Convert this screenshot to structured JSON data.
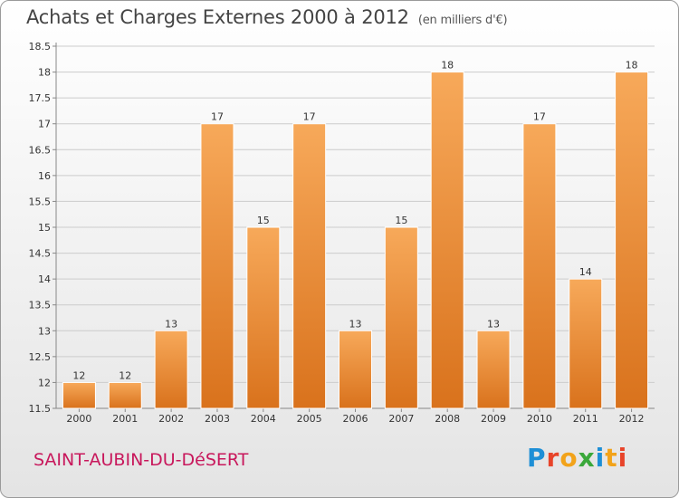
{
  "header": {
    "title": "Achats et Charges Externes 2000 à 2012",
    "unit": "(en milliers d'€)"
  },
  "footer": {
    "commune": "SAINT-AUBIN-DU-DéSERT",
    "logo_text": "Proxiti",
    "logo_colors": [
      "#1e8fd6",
      "#e8442a",
      "#f2a31a",
      "#3aa83a",
      "#1e8fd6",
      "#f2a31a",
      "#e8442a"
    ]
  },
  "colors": {
    "bar_light": "#f7a95a",
    "bar_dark": "#d9721c",
    "grid": "#cccccc",
    "axis_text": "#333333"
  },
  "chart_data": {
    "type": "bar",
    "categories": [
      "2000",
      "2001",
      "2002",
      "2003",
      "2004",
      "2005",
      "2006",
      "2007",
      "2008",
      "2009",
      "2010",
      "2011",
      "2012"
    ],
    "values": [
      12,
      12,
      13,
      17,
      15,
      17,
      13,
      15,
      18,
      13,
      17,
      14,
      18
    ],
    "data_labels": [
      "12",
      "12",
      "13",
      "17",
      "15",
      "17",
      "13",
      "15",
      "18",
      "13",
      "17",
      "14",
      "18"
    ],
    "yticks": [
      "11.5",
      "12",
      "12.5",
      "13",
      "13.5",
      "14",
      "14.5",
      "15",
      "15.5",
      "16",
      "16.5",
      "17",
      "17.5",
      "18",
      "18.5"
    ],
    "ylim": [
      11.5,
      18.5
    ],
    "grid": true
  }
}
